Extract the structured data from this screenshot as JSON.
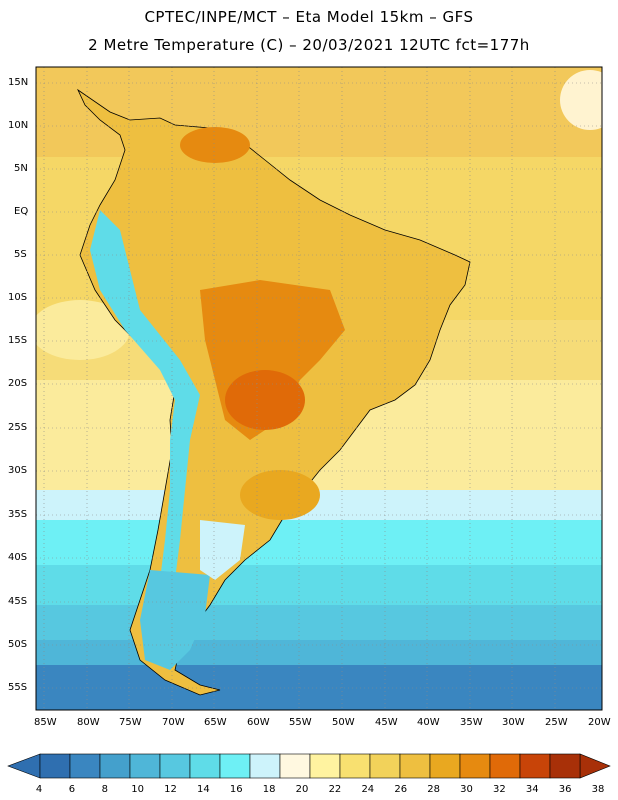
{
  "header": {
    "line1": "CPTEC/INPE/MCT –  Eta Model 15km – GFS",
    "line2": "2 Metre Temperature (C) – 20/03/2021 12UTC fct=177h"
  },
  "axes": {
    "lat_labels": [
      "15N",
      "10N",
      "5N",
      "EQ",
      "5S",
      "10S",
      "15S",
      "20S",
      "25S",
      "30S",
      "35S",
      "40S",
      "45S",
      "50S",
      "55S"
    ],
    "lon_labels": [
      "85W",
      "80W",
      "75W",
      "70W",
      "65W",
      "60W",
      "55W",
      "50W",
      "45W",
      "40W",
      "35W",
      "30W",
      "25W",
      "20W"
    ]
  },
  "legend": {
    "values": [
      "4",
      "6",
      "8",
      "10",
      "12",
      "14",
      "16",
      "18",
      "20",
      "22",
      "24",
      "26",
      "28",
      "30",
      "32",
      "34",
      "36",
      "38"
    ],
    "colors": [
      "#2f6fb0",
      "#3a86c0",
      "#44a0cc",
      "#4fb6d8",
      "#57c8e0",
      "#5fdce8",
      "#6ef0f5",
      "#cdf3fb",
      "#fff8e0",
      "#fff3a0",
      "#f8e070",
      "#f2d25a",
      "#eebf40",
      "#e9a820",
      "#e68a10",
      "#e06a08",
      "#c84408",
      "#a83008"
    ]
  },
  "chart_data": {
    "type": "heatmap",
    "title": "2 Metre Temperature (C)",
    "model": "Eta Model 15km – GFS",
    "source": "CPTEC/INPE/MCT",
    "valid": "20/03/2021 12UTC",
    "forecast_hour": "fct=177h",
    "lon_range": [
      -85,
      -20
    ],
    "lat_range": [
      -57,
      16
    ],
    "lon_ticks": [
      -85,
      -80,
      -75,
      -70,
      -65,
      -60,
      -55,
      -50,
      -45,
      -40,
      -35,
      -30,
      -25,
      -20
    ],
    "lat_ticks": [
      15,
      10,
      5,
      0,
      -5,
      -10,
      -15,
      -20,
      -25,
      -30,
      -35,
      -40,
      -45,
      -50,
      -55
    ],
    "color_scale": [
      4,
      6,
      8,
      10,
      12,
      14,
      16,
      18,
      20,
      22,
      24,
      26,
      28,
      30,
      32,
      34,
      36,
      38
    ],
    "units": "C"
  }
}
